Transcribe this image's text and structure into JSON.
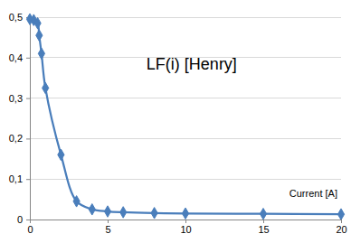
{
  "chart_data": {
    "type": "line",
    "title": "LF(i) [Henry]",
    "x_label": "Current [A]",
    "x": [
      0,
      0.25,
      0.5,
      0.6,
      0.75,
      1,
      2,
      3,
      4,
      5,
      6,
      8,
      10,
      15,
      20
    ],
    "values": [
      0.495,
      0.493,
      0.485,
      0.455,
      0.41,
      0.325,
      0.16,
      0.045,
      0.025,
      0.02,
      0.018,
      0.016,
      0.015,
      0.014,
      0.013
    ],
    "color": "#4a7ebb",
    "marker": "diamond",
    "line_style": "smooth",
    "xlim": [
      0,
      20
    ],
    "xticks": [
      0,
      5,
      10,
      15,
      20
    ],
    "ylim": [
      0,
      0.5
    ],
    "yticks": [
      0,
      {
        "value": 0.1,
        "label": "0,1"
      },
      {
        "value": 0.2,
        "label": "0,2"
      },
      {
        "value": 0.3,
        "label": "0,3"
      },
      {
        "value": 0.4,
        "label": "0,4"
      },
      {
        "value": 0.5,
        "label": "0,5"
      }
    ],
    "grid": true
  }
}
